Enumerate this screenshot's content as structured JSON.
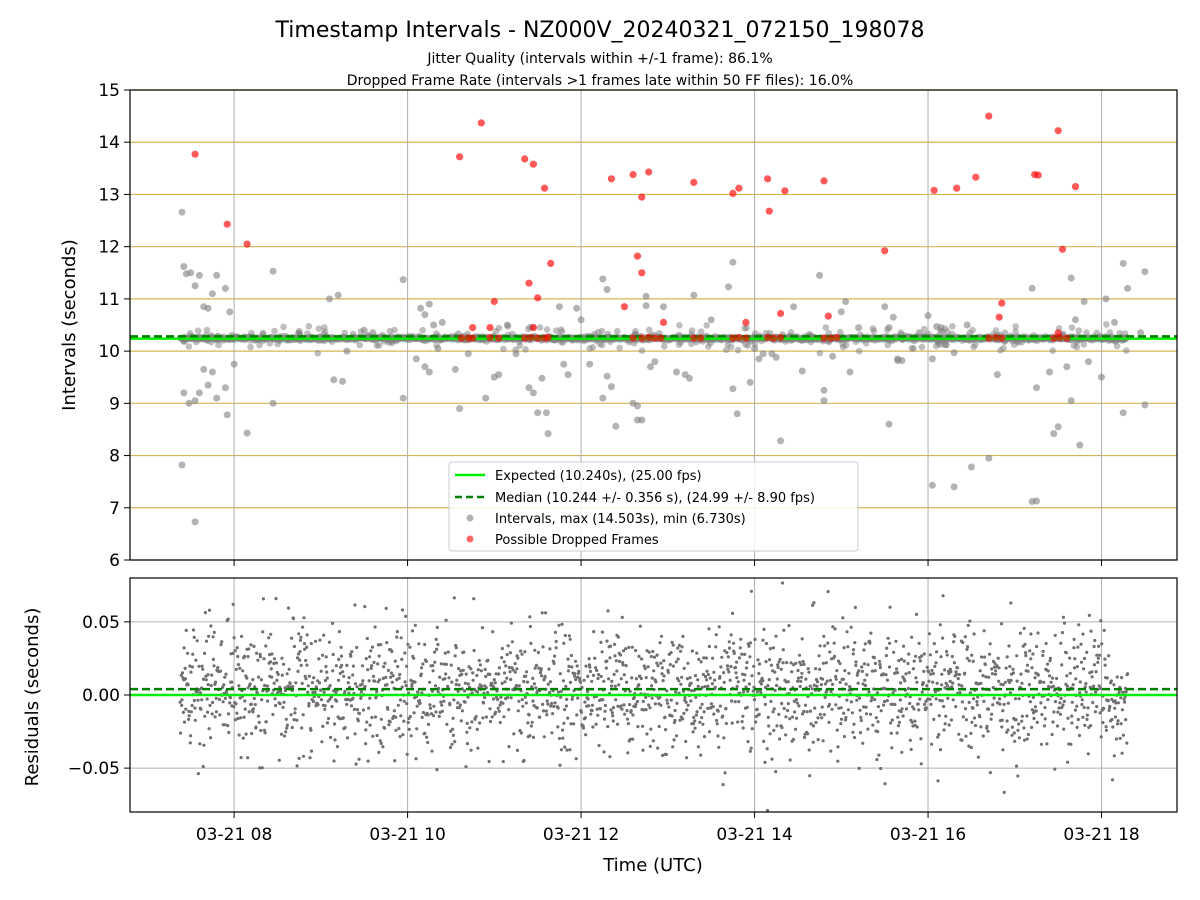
{
  "title": "Timestamp Intervals - NZ000V_20240321_072150_198078",
  "subtitle_lines": [
    "Jitter Quality (intervals within +/-1 frame): 86.1%",
    "Dropped Frame Rate (intervals >1 frames late within 50 FF files): 16.0%"
  ],
  "colors": {
    "expected": "#00ee00",
    "median": "#008000",
    "intervals": "#808080",
    "dropped": "#ff0000",
    "hgrid_top": "#d4b55a",
    "grid": "#b0b0b0"
  },
  "chart_data": [
    {
      "type": "scatter",
      "ylabel": "Intervals (seconds)",
      "ylim": [
        6,
        15
      ],
      "yticks": [
        6,
        7,
        8,
        9,
        10,
        11,
        12,
        13,
        14,
        15
      ],
      "x_range_hours": [
        6.8,
        18.87
      ],
      "xticks": [
        {
          "hour": 8,
          "label": "03-21 08"
        },
        {
          "hour": 10,
          "label": "03-21 10"
        },
        {
          "hour": 12,
          "label": "03-21 12"
        },
        {
          "hour": 14,
          "label": "03-21 14"
        },
        {
          "hour": 16,
          "label": "03-21 16"
        },
        {
          "hour": 18,
          "label": "03-21 18"
        }
      ],
      "grid": "horizontal and vertical",
      "legend_position": "lower-center",
      "lines": [
        {
          "name": "Expected (10.240s), (25.00 fps)",
          "y": 10.24,
          "style": "solid"
        },
        {
          "name": "Median (10.244 +/- 0.356 s), (24.99 +/- 8.90 fps)",
          "y": 10.244,
          "style": "dashed"
        }
      ],
      "series": [
        {
          "name": "Intervals, max (14.503s), min (6.730s)",
          "marker": "circle",
          "points": [
            [
              7.4,
              12.66
            ],
            [
              7.42,
              11.62
            ],
            [
              7.45,
              11.48
            ],
            [
              7.5,
              11.5
            ],
            [
              7.55,
              11.25
            ],
            [
              7.6,
              11.45
            ],
            [
              7.65,
              10.85
            ],
            [
              7.7,
              10.82
            ],
            [
              7.75,
              11.1
            ],
            [
              7.8,
              11.45
            ],
            [
              7.9,
              11.2
            ],
            [
              7.95,
              10.75
            ],
            [
              7.42,
              9.2
            ],
            [
              7.48,
              9.0
            ],
            [
              7.55,
              9.05
            ],
            [
              7.6,
              9.2
            ],
            [
              7.65,
              9.65
            ],
            [
              7.7,
              9.35
            ],
            [
              7.75,
              9.6
            ],
            [
              7.8,
              9.1
            ],
            [
              7.9,
              9.3
            ],
            [
              7.92,
              8.78
            ],
            [
              8.0,
              9.75
            ],
            [
              8.15,
              8.43
            ],
            [
              7.4,
              7.82
            ],
            [
              7.55,
              6.73
            ],
            [
              8.45,
              11.53
            ],
            [
              8.45,
              9.0
            ],
            [
              9.1,
              11.0
            ],
            [
              9.2,
              11.07
            ],
            [
              9.15,
              9.45
            ],
            [
              9.25,
              9.42
            ],
            [
              9.3,
              10.0
            ],
            [
              9.5,
              10.4
            ],
            [
              9.6,
              10.35
            ],
            [
              9.95,
              11.37
            ],
            [
              9.95,
              9.1
            ],
            [
              10.15,
              10.82
            ],
            [
              10.2,
              10.7
            ],
            [
              10.25,
              10.9
            ],
            [
              10.3,
              10.5
            ],
            [
              10.4,
              10.55
            ],
            [
              10.1,
              9.85
            ],
            [
              10.2,
              9.7
            ],
            [
              10.25,
              9.6
            ],
            [
              10.35,
              10.05
            ],
            [
              10.55,
              9.65
            ],
            [
              10.6,
              8.9
            ],
            [
              10.7,
              9.95
            ],
            [
              10.9,
              9.1
            ],
            [
              11.0,
              9.5
            ],
            [
              11.05,
              9.55
            ],
            [
              11.15,
              10.5
            ],
            [
              11.25,
              9.95
            ],
            [
              11.4,
              9.3
            ],
            [
              11.45,
              9.2
            ],
            [
              11.5,
              8.82
            ],
            [
              11.6,
              8.82
            ],
            [
              11.62,
              8.42
            ],
            [
              11.55,
              9.48
            ],
            [
              11.75,
              10.85
            ],
            [
              11.8,
              9.75
            ],
            [
              11.95,
              10.82
            ],
            [
              12.0,
              10.6
            ],
            [
              11.85,
              9.55
            ],
            [
              12.1,
              9.75
            ],
            [
              12.25,
              11.38
            ],
            [
              12.3,
              11.18
            ],
            [
              12.3,
              9.52
            ],
            [
              12.35,
              9.32
            ],
            [
              12.25,
              9.1
            ],
            [
              12.4,
              8.56
            ],
            [
              12.6,
              9.0
            ],
            [
              12.65,
              8.68
            ],
            [
              12.7,
              8.68
            ],
            [
              12.65,
              8.95
            ],
            [
              12.75,
              10.87
            ],
            [
              12.8,
              9.7
            ],
            [
              12.85,
              9.8
            ],
            [
              12.95,
              10.85
            ],
            [
              12.75,
              11.05
            ],
            [
              13.1,
              9.6
            ],
            [
              13.2,
              9.55
            ],
            [
              13.25,
              9.48
            ],
            [
              13.3,
              11.07
            ],
            [
              13.5,
              10.6
            ],
            [
              13.7,
              11.23
            ],
            [
              13.75,
              11.7
            ],
            [
              13.75,
              9.28
            ],
            [
              13.8,
              8.8
            ],
            [
              13.95,
              9.4
            ],
            [
              14.0,
              10.05
            ],
            [
              14.05,
              9.85
            ],
            [
              14.1,
              9.95
            ],
            [
              14.2,
              9.95
            ],
            [
              14.25,
              9.88
            ],
            [
              14.3,
              8.28
            ],
            [
              14.45,
              10.85
            ],
            [
              14.55,
              9.62
            ],
            [
              14.75,
              11.45
            ],
            [
              14.8,
              9.25
            ],
            [
              14.8,
              9.05
            ],
            [
              14.9,
              9.9
            ],
            [
              15.0,
              10.75
            ],
            [
              15.05,
              10.95
            ],
            [
              15.1,
              9.6
            ],
            [
              15.2,
              10.45
            ],
            [
              15.5,
              10.85
            ],
            [
              15.55,
              10.45
            ],
            [
              15.6,
              10.65
            ],
            [
              15.65,
              9.85
            ],
            [
              15.7,
              9.82
            ],
            [
              15.65,
              9.82
            ],
            [
              15.55,
              8.6
            ],
            [
              15.9,
              10.35
            ],
            [
              16.0,
              10.68
            ],
            [
              16.05,
              9.85
            ],
            [
              16.1,
              10.47
            ],
            [
              16.15,
              10.45
            ],
            [
              16.2,
              10.12
            ],
            [
              16.3,
              9.97
            ],
            [
              16.45,
              10.5
            ],
            [
              16.5,
              7.78
            ],
            [
              16.05,
              7.43
            ],
            [
              16.3,
              7.4
            ],
            [
              16.7,
              7.95
            ],
            [
              16.8,
              9.55
            ],
            [
              17.2,
              11.2
            ],
            [
              17.25,
              9.3
            ],
            [
              17.2,
              7.12
            ],
            [
              17.25,
              7.13
            ],
            [
              17.4,
              9.6
            ],
            [
              17.45,
              8.42
            ],
            [
              17.5,
              8.55
            ],
            [
              17.6,
              9.7
            ],
            [
              17.65,
              11.4
            ],
            [
              17.65,
              9.05
            ],
            [
              17.75,
              8.2
            ],
            [
              17.85,
              9.8
            ],
            [
              17.7,
              10.6
            ],
            [
              17.8,
              10.95
            ],
            [
              18.05,
              11.0
            ],
            [
              18.0,
              9.5
            ],
            [
              18.15,
              10.55
            ],
            [
              18.25,
              11.68
            ],
            [
              18.3,
              11.2
            ],
            [
              18.25,
              8.82
            ],
            [
              18.5,
              11.52
            ],
            [
              18.5,
              8.97
            ],
            [
              18.45,
              10.35
            ]
          ]
        },
        {
          "name": "Possible Dropped Frames",
          "marker": "circle",
          "points": [
            [
              7.55,
              13.77
            ],
            [
              7.92,
              12.43
            ],
            [
              8.15,
              12.05
            ],
            [
              10.6,
              13.72
            ],
            [
              10.85,
              14.37
            ],
            [
              10.75,
              10.45
            ],
            [
              10.95,
              10.45
            ],
            [
              11.0,
              10.95
            ],
            [
              11.35,
              13.68
            ],
            [
              11.45,
              13.58
            ],
            [
              11.58,
              13.12
            ],
            [
              11.4,
              11.3
            ],
            [
              11.5,
              11.02
            ],
            [
              11.45,
              10.45
            ],
            [
              11.65,
              11.68
            ],
            [
              12.35,
              13.3
            ],
            [
              12.6,
              13.38
            ],
            [
              12.7,
              12.95
            ],
            [
              12.78,
              13.43
            ],
            [
              12.65,
              11.82
            ],
            [
              12.7,
              11.5
            ],
            [
              12.5,
              10.85
            ],
            [
              12.95,
              10.55
            ],
            [
              13.3,
              13.23
            ],
            [
              13.75,
              13.02
            ],
            [
              13.82,
              13.12
            ],
            [
              13.9,
              10.55
            ],
            [
              14.15,
              13.3
            ],
            [
              14.17,
              12.68
            ],
            [
              14.35,
              13.07
            ],
            [
              14.3,
              10.72
            ],
            [
              14.8,
              13.26
            ],
            [
              14.85,
              10.67
            ],
            [
              15.5,
              11.92
            ],
            [
              16.07,
              13.08
            ],
            [
              16.33,
              13.12
            ],
            [
              16.55,
              13.33
            ],
            [
              16.7,
              14.5
            ],
            [
              16.85,
              10.92
            ],
            [
              16.82,
              10.65
            ],
            [
              17.23,
              13.38
            ],
            [
              17.27,
              13.37
            ],
            [
              17.5,
              14.22
            ],
            [
              17.55,
              11.95
            ],
            [
              17.7,
              13.15
            ],
            [
              17.5,
              10.35
            ],
            [
              10.62,
              10.25
            ],
            [
              10.7,
              10.25
            ],
            [
              10.75,
              10.25
            ],
            [
              10.95,
              10.26
            ],
            [
              11.05,
              10.25
            ],
            [
              11.35,
              10.25
            ],
            [
              11.42,
              10.26
            ],
            [
              11.5,
              10.25
            ],
            [
              11.58,
              10.25
            ],
            [
              11.62,
              10.26
            ],
            [
              12.6,
              10.25
            ],
            [
              12.7,
              10.25
            ],
            [
              12.78,
              10.26
            ],
            [
              12.85,
              10.25
            ],
            [
              12.92,
              10.25
            ],
            [
              13.3,
              10.25
            ],
            [
              13.38,
              10.25
            ],
            [
              13.75,
              10.25
            ],
            [
              13.82,
              10.26
            ],
            [
              13.9,
              10.25
            ],
            [
              14.15,
              10.26
            ],
            [
              14.22,
              10.25
            ],
            [
              14.3,
              10.26
            ],
            [
              14.8,
              10.25
            ],
            [
              14.88,
              10.25
            ],
            [
              14.95,
              10.26
            ],
            [
              16.7,
              10.25
            ],
            [
              16.78,
              10.26
            ],
            [
              16.85,
              10.25
            ],
            [
              17.45,
              10.25
            ],
            [
              17.52,
              10.26
            ],
            [
              17.6,
              10.25
            ]
          ]
        }
      ]
    },
    {
      "type": "scatter",
      "xlabel": "Time (UTC)",
      "ylabel": "Residuals (seconds)",
      "ylim": [
        -0.08,
        0.08
      ],
      "yticks": [
        {
          "value": -0.05,
          "label": "−0.05"
        },
        {
          "value": 0.0,
          "label": "0.00"
        },
        {
          "value": 0.05,
          "label": "0.05"
        }
      ],
      "x_range_hours": [
        6.8,
        18.87
      ],
      "grid": "horizontal and vertical",
      "lines": [
        {
          "name": "Expected",
          "y": 0.0,
          "style": "solid"
        },
        {
          "name": "Median",
          "y": 0.004,
          "style": "dashed"
        }
      ],
      "series": [
        {
          "name": "Residuals",
          "marker": "dot",
          "x_start_hour": 7.38,
          "x_end_hour": 18.3,
          "count": 2200,
          "distribution": {
            "center": 0.004,
            "spread": 0.022,
            "extreme_range": [
              -0.08,
              0.08
            ]
          }
        }
      ]
    }
  ]
}
